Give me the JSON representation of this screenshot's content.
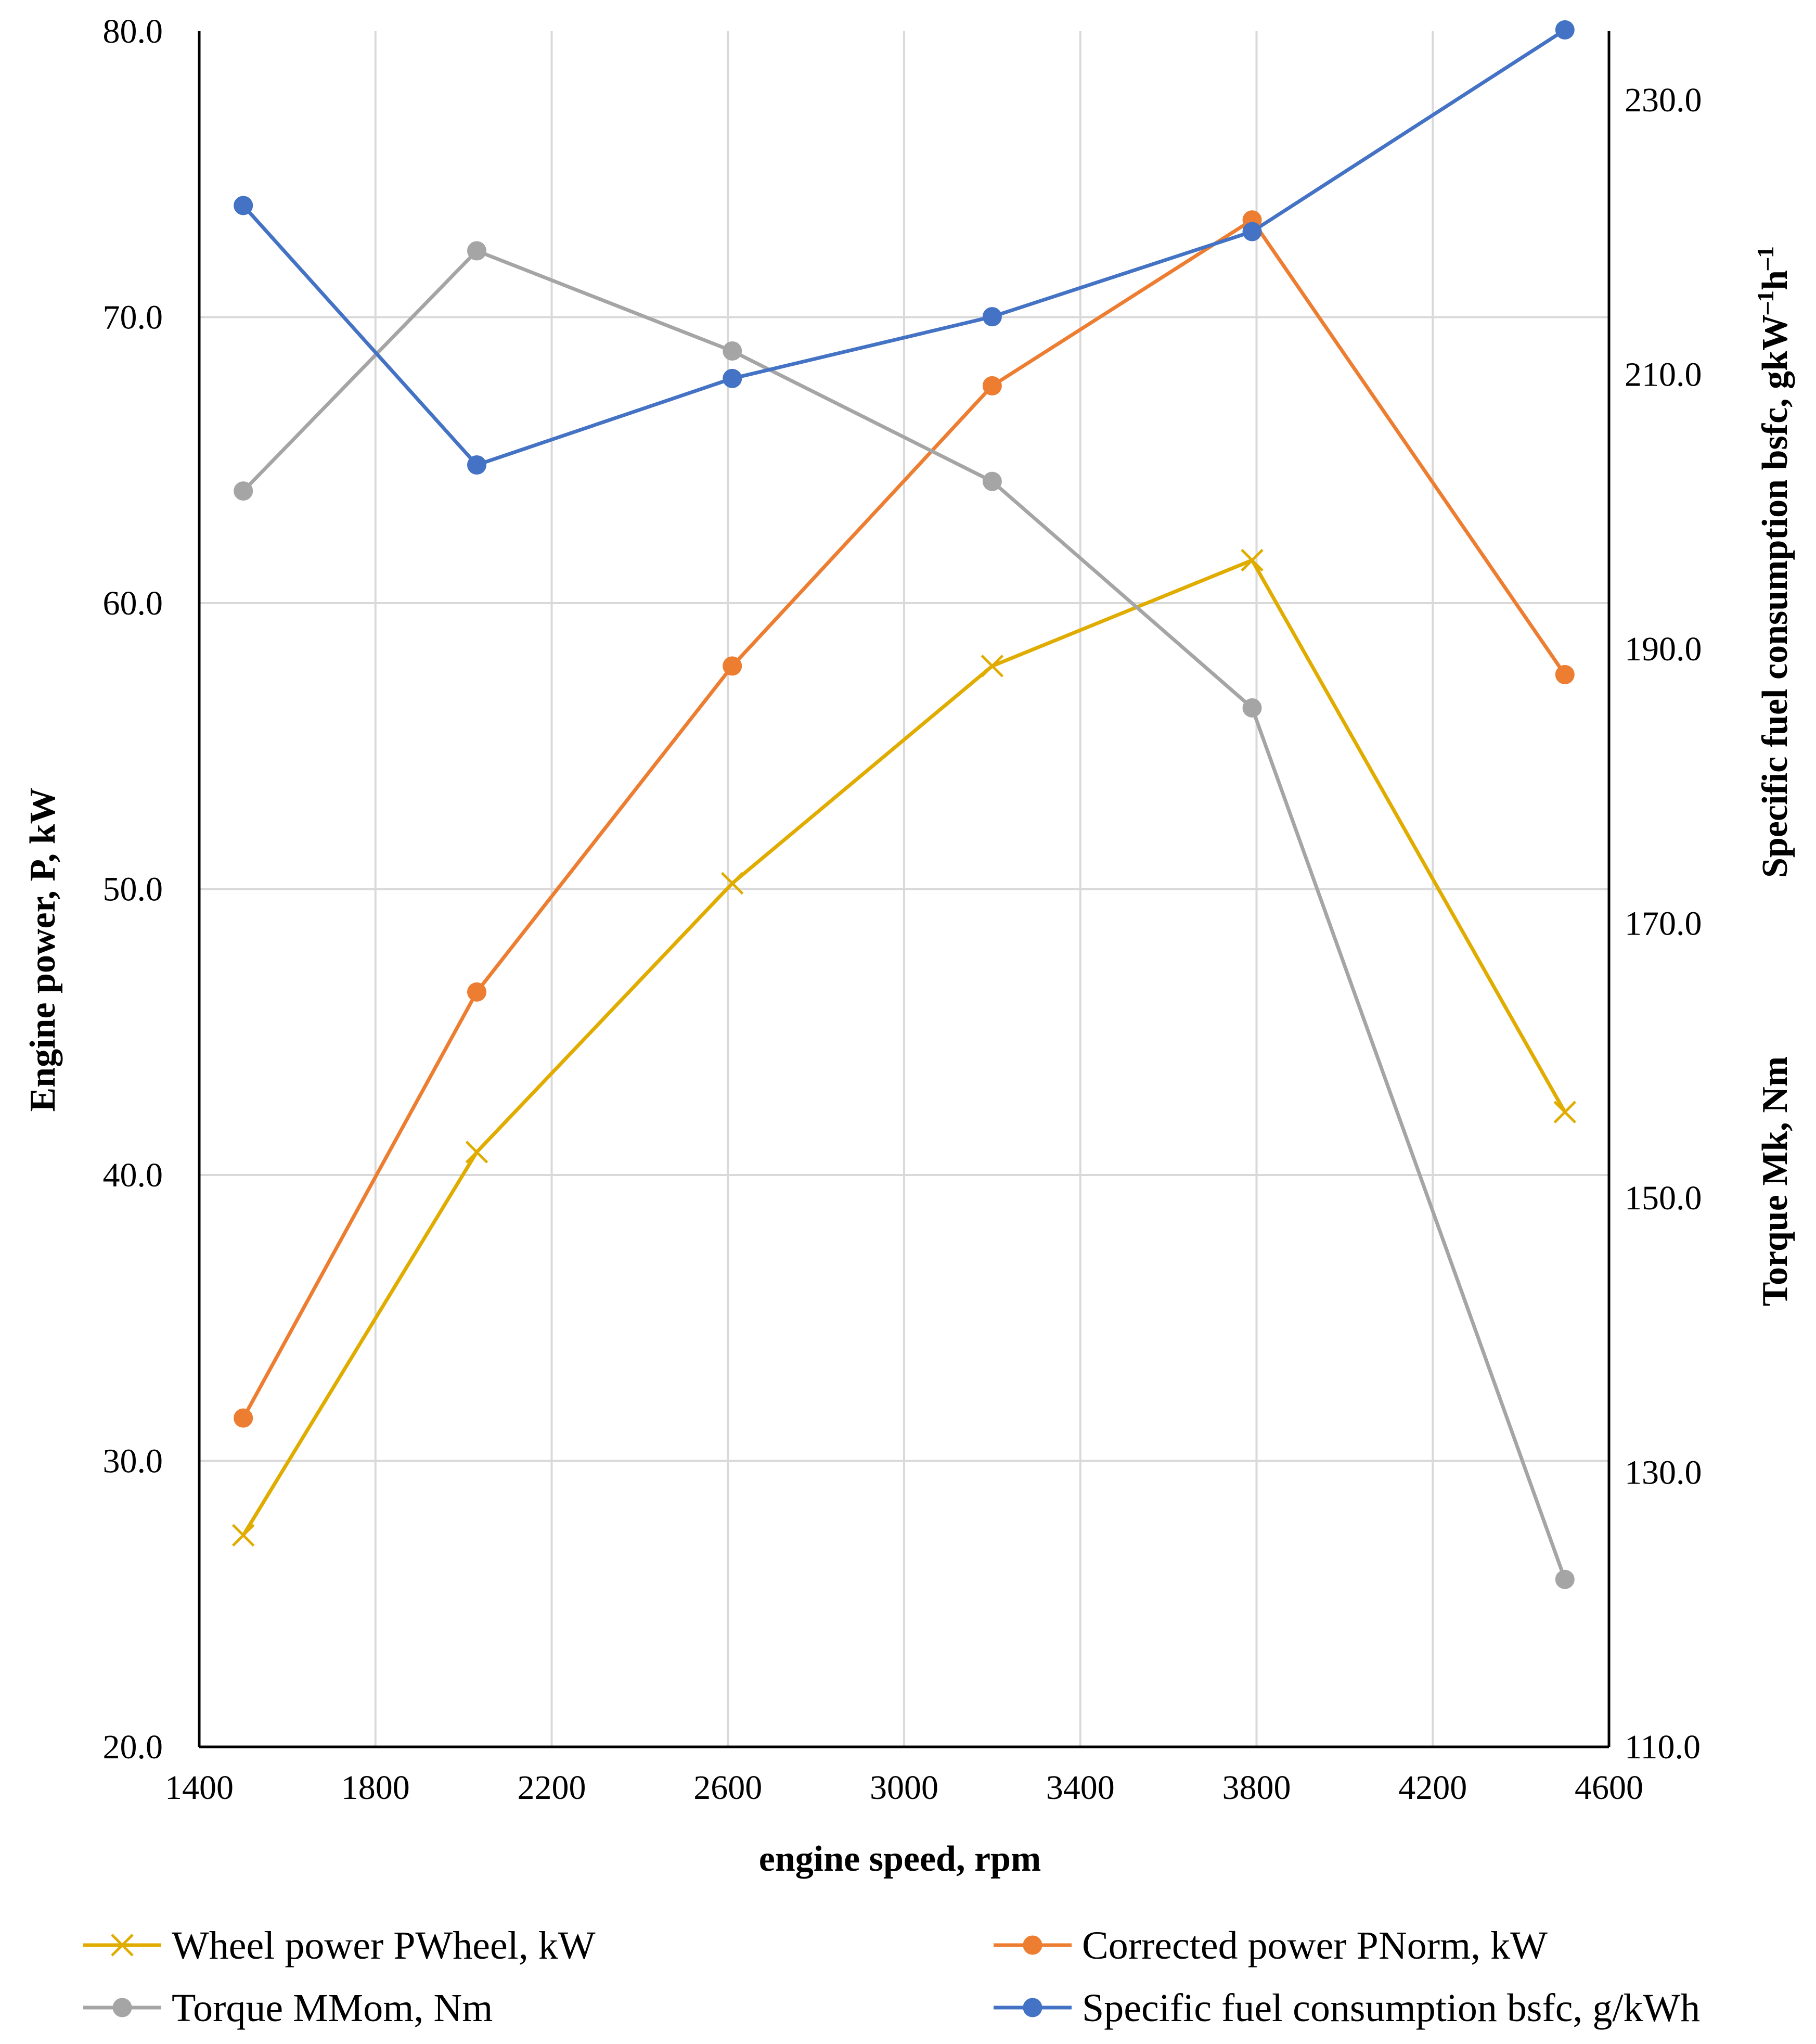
{
  "chart_data": {
    "type": "line",
    "title": "",
    "xlabel": "engine speed, rpm",
    "ylabel_left": "Engine power, P, kW",
    "ylabel_right_top": "Specific fuel  consumption bsfc, gkW",
    "ylabel_right_top_sup1": "–1",
    "ylabel_right_top_mid": "h",
    "ylabel_right_top_sup2": "–1",
    "ylabel_right_bottom": "Torque Mk, Nm",
    "xlim": [
      1400,
      4600
    ],
    "ylim_left": [
      20,
      80
    ],
    "ylim_right": [
      110,
      235
    ],
    "x_ticks": [
      "1400",
      "1800",
      "2200",
      "2600",
      "3000",
      "3400",
      "3800",
      "4200",
      "4600"
    ],
    "y_left_ticks": [
      "20.0",
      "30.0",
      "40.0",
      "50.0",
      "60.0",
      "70.0",
      "80.0"
    ],
    "y_right_ticks": [
      "110.0",
      "130.0",
      "150.0",
      "170.0",
      "190.0",
      "210.0",
      "230.0"
    ],
    "grid": true,
    "legend_position": "bottom",
    "series": [
      {
        "name": "Wheel power  PWheel, kW",
        "axis": "left",
        "marker": "x",
        "color": "#E0AC00",
        "x": [
          1500,
          2030,
          2610,
          3200,
          3790,
          4500
        ],
        "values": [
          27.4,
          40.8,
          50.2,
          57.8,
          61.5,
          42.2
        ]
      },
      {
        "name": "Corrected power  PNorm, kW",
        "axis": "left",
        "marker": "circle",
        "color": "#ED7D31",
        "x": [
          1500,
          2030,
          2610,
          3200,
          3790,
          4500
        ],
        "values": [
          31.5,
          46.4,
          57.8,
          67.6,
          73.4,
          57.5
        ]
      },
      {
        "name": "Torque MMom, Nm",
        "axis": "right",
        "marker": "circle",
        "color": "#A5A5A5",
        "x": [
          1500,
          2030,
          2610,
          3200,
          3790,
          4500
        ],
        "values": [
          201.5,
          219.0,
          211.7,
          202.2,
          185.7,
          122.2
        ]
      },
      {
        "name": "Specific fuel consumption bsfc, g/kWh",
        "axis": "right",
        "marker": "circle",
        "color": "#4472C4",
        "x": [
          1500,
          2030,
          2610,
          3200,
          3790,
          4500
        ],
        "values": [
          222.3,
          203.4,
          209.7,
          214.2,
          220.4,
          235.1
        ]
      }
    ]
  }
}
